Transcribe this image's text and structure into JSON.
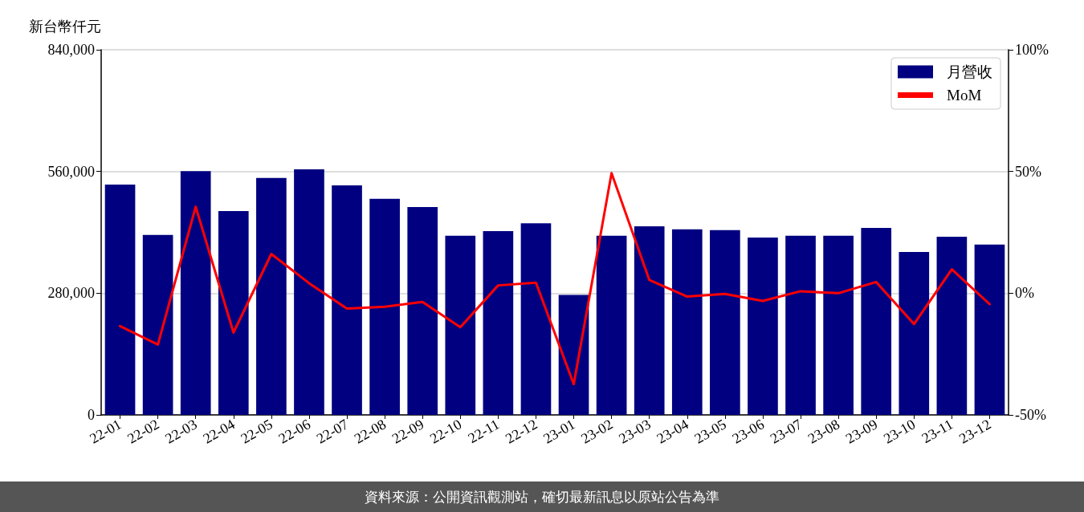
{
  "chart_data": {
    "type": "bar",
    "ylabel": "新台幣仟元",
    "categories": [
      "22-01",
      "22-02",
      "22-03",
      "22-04",
      "22-05",
      "22-06",
      "22-07",
      "22-08",
      "22-09",
      "22-10",
      "22-11",
      "22-12",
      "23-01",
      "23-02",
      "23-03",
      "23-04",
      "23-05",
      "23-06",
      "23-07",
      "23-08",
      "23-09",
      "23-10",
      "23-11",
      "23-12"
    ],
    "series": [
      {
        "name": "月營收",
        "color": "#000080",
        "values": [
          530000,
          414000,
          561000,
          469000,
          545000,
          565000,
          528000,
          497000,
          478000,
          412000,
          423000,
          441000,
          276000,
          412000,
          434000,
          427000,
          425000,
          408000,
          412000,
          412000,
          430000,
          375000,
          410000,
          392000
        ]
      },
      {
        "name": "MoM",
        "type": "line",
        "axis": "y2",
        "color": "#ff0000",
        "values": [
          -13.5,
          -21.1,
          35.5,
          -16.2,
          16.1,
          4.1,
          -6.3,
          -5.6,
          -3.6,
          -14.0,
          3.2,
          4.3,
          -37.4,
          49.3,
          5.4,
          -1.4,
          -0.3,
          -3.2,
          0.8,
          0.0,
          4.6,
          -12.7,
          9.8,
          -4.5
        ]
      }
    ],
    "ylim": [
      0,
      840000
    ],
    "yticks": [
      {
        "value": 0,
        "label": "0"
      },
      {
        "value": 280000,
        "label": "280,000"
      },
      {
        "value": 560000,
        "label": "560,000"
      },
      {
        "value": 840000,
        "label": "840,000"
      }
    ],
    "y2lim": [
      -50,
      100
    ],
    "y2ticks": [
      {
        "value": -50,
        "label": "-50%"
      },
      {
        "value": 0,
        "label": "0%"
      },
      {
        "value": 50,
        "label": "50%"
      },
      {
        "value": 100,
        "label": "100%"
      }
    ],
    "grid": "y",
    "legend": "top right",
    "marker": "none",
    "line_style": "solid",
    "annotations": [
      "資料來源：公開資訊觀測站，確切最新訊息以原站公告為準"
    ]
  }
}
